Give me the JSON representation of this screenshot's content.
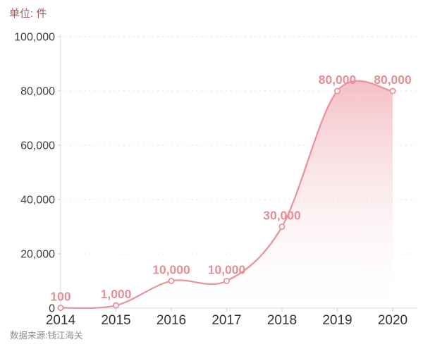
{
  "chart_data": {
    "type": "area",
    "title": "单位: 件",
    "source": "数据来源:钱江海关",
    "x": [
      2014,
      2015,
      2016,
      2017,
      2018,
      2019,
      2020
    ],
    "x_tick_labels": [
      "2014",
      "2015",
      "2016",
      "2017",
      "2018",
      "2019",
      "2020"
    ],
    "values": [
      100,
      1000,
      10000,
      10000,
      30000,
      80000,
      80000
    ],
    "point_labels": [
      "100",
      "1,000",
      "10,000",
      "10,000",
      "30,000",
      "80,000",
      "80,000"
    ],
    "y_ticks": [
      0,
      20000,
      40000,
      60000,
      80000,
      100000
    ],
    "y_tick_labels": [
      "0",
      "20,000",
      "40,000",
      "60,000",
      "80,000",
      "100,000"
    ],
    "ylim": [
      0,
      100000
    ],
    "grid": "horizontal-dotted",
    "legend": "none",
    "smoothing": "catmull-rom",
    "colors": {
      "line": "#e9949e",
      "fill_top": "#efa2ab",
      "fill_bottom": "#ffffff",
      "point_label": "#e68f97",
      "marker_fill": "#ffffff",
      "marker_stroke": "#e9949e",
      "axis_line": "#d8d8d8",
      "tick_mark": "#cfcfcf",
      "gridline": "#e6e6e6",
      "y_tick_text": "#3d3d3d",
      "x_tick_text": "#333333",
      "title_text": "#9c5d60",
      "source_text": "#8c8c8c"
    }
  }
}
